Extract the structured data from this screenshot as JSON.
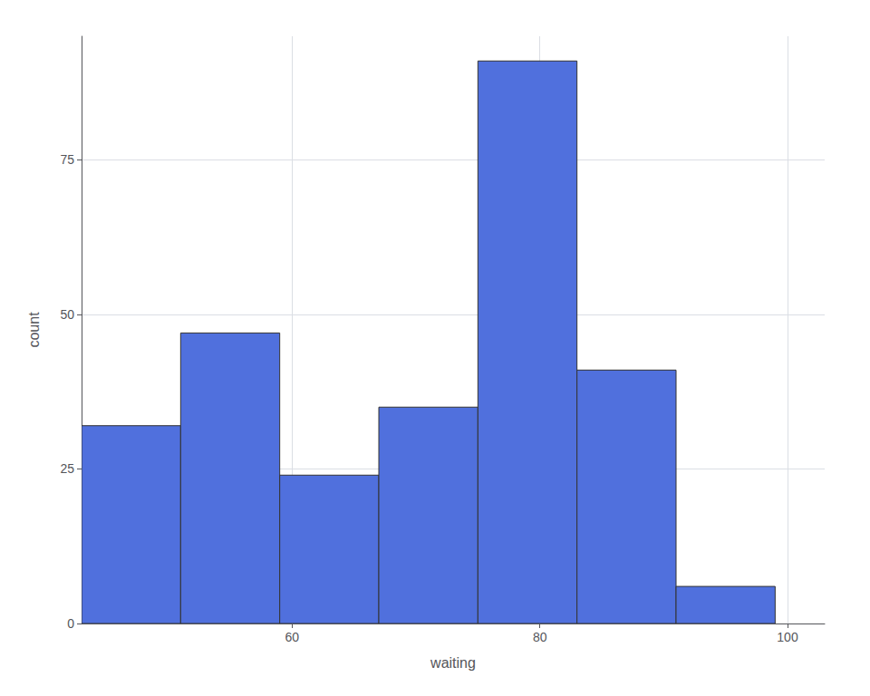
{
  "chart_data": {
    "type": "histogram",
    "xlabel": "waiting",
    "ylabel": "count",
    "bins": [
      43,
      51,
      59,
      67,
      75,
      83,
      91,
      99
    ],
    "values": [
      32,
      47,
      24,
      35,
      91,
      41,
      6
    ],
    "xlim": [
      43,
      103
    ],
    "ylim": [
      0,
      95
    ],
    "xticks": [
      60,
      80,
      100
    ],
    "yticks": [
      0,
      25,
      50,
      75
    ],
    "grid": true
  }
}
